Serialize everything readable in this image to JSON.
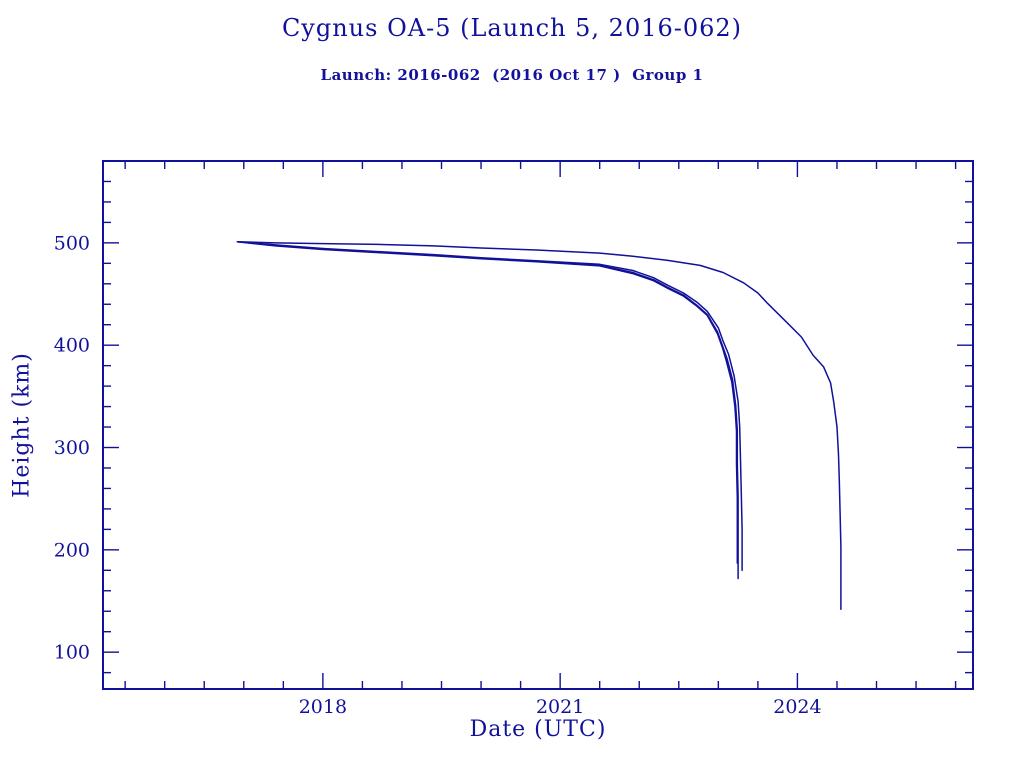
{
  "title": "Cygnus OA-5 (Launch 5, 2016-062)",
  "subtitle": "Launch: 2016-062  (2016 Oct 17 )  Group 1",
  "colors": {
    "ink": "#11119b",
    "background": "#ffffff"
  },
  "chart_data": {
    "type": "line",
    "title": "Cygnus OA-5 (Launch 5, 2016-062)",
    "subtitle": "Launch: 2016-062  (2016 Oct 17 )  Group 1",
    "xlabel": "Date (UTC)",
    "ylabel": "Height (km)",
    "xlim": [
      2015.22,
      2026.22
    ],
    "ylim": [
      64,
      580
    ],
    "x_major_ticks": [
      2018,
      2021,
      2024
    ],
    "x_minor_step": 0.5,
    "y_major_ticks": [
      100,
      200,
      300,
      400,
      500
    ],
    "y_minor_step": 20,
    "grid": false,
    "legend": "none",
    "line_color": "#11119b",
    "series": [
      {
        "name": "curve-1-long-lived-object",
        "points": [
          [
            2016.92,
            501
          ],
          [
            2017.4,
            500
          ],
          [
            2018.0,
            499.3
          ],
          [
            2018.7,
            498.5
          ],
          [
            2019.4,
            497
          ],
          [
            2020.0,
            495
          ],
          [
            2020.7,
            493
          ],
          [
            2021.5,
            490
          ],
          [
            2021.92,
            487
          ],
          [
            2022.35,
            483
          ],
          [
            2022.77,
            478
          ],
          [
            2023.06,
            471
          ],
          [
            2023.32,
            461
          ],
          [
            2023.5,
            451
          ],
          [
            2023.62,
            441
          ],
          [
            2023.87,
            422
          ],
          [
            2024.05,
            408
          ],
          [
            2024.2,
            390
          ],
          [
            2024.33,
            379
          ],
          [
            2024.42,
            363
          ],
          [
            2024.46,
            344
          ],
          [
            2024.5,
            320
          ],
          [
            2024.52,
            293
          ],
          [
            2024.53,
            268
          ],
          [
            2024.54,
            236
          ],
          [
            2024.55,
            203
          ],
          [
            2024.55,
            142
          ]
        ]
      },
      {
        "name": "curve-2",
        "points": [
          [
            2016.92,
            501
          ],
          [
            2017.4,
            497.5
          ],
          [
            2018.0,
            494
          ],
          [
            2018.7,
            491
          ],
          [
            2019.4,
            488
          ],
          [
            2020.0,
            485
          ],
          [
            2020.7,
            482
          ],
          [
            2021.5,
            478
          ],
          [
            2021.92,
            471
          ],
          [
            2022.18,
            464
          ],
          [
            2022.35,
            457
          ],
          [
            2022.56,
            449
          ],
          [
            2022.73,
            439
          ],
          [
            2022.86,
            430
          ],
          [
            2022.99,
            413
          ],
          [
            2023.05,
            400
          ],
          [
            2023.11,
            387
          ],
          [
            2023.18,
            366
          ],
          [
            2023.22,
            341
          ],
          [
            2023.24,
            317
          ],
          [
            2023.24,
            285
          ],
          [
            2023.25,
            252
          ],
          [
            2023.25,
            219
          ],
          [
            2023.25,
            172
          ]
        ]
      },
      {
        "name": "curve-3",
        "points": [
          [
            2016.92,
            501
          ],
          [
            2017.4,
            497
          ],
          [
            2018.0,
            493.5
          ],
          [
            2018.7,
            490.5
          ],
          [
            2019.4,
            487.5
          ],
          [
            2020.0,
            484.5
          ],
          [
            2020.7,
            481.5
          ],
          [
            2021.5,
            477.5
          ],
          [
            2021.92,
            470
          ],
          [
            2022.18,
            463
          ],
          [
            2022.35,
            456
          ],
          [
            2022.56,
            448
          ],
          [
            2022.73,
            438
          ],
          [
            2022.86,
            429
          ],
          [
            2022.99,
            411
          ],
          [
            2023.05,
            398
          ],
          [
            2023.1,
            385
          ],
          [
            2023.17,
            364
          ],
          [
            2023.21,
            340
          ],
          [
            2023.23,
            316
          ],
          [
            2023.23,
            284
          ],
          [
            2023.24,
            251
          ],
          [
            2023.24,
            187
          ]
        ]
      },
      {
        "name": "curve-4",
        "points": [
          [
            2016.92,
            501
          ],
          [
            2017.4,
            498
          ],
          [
            2018.0,
            494.5
          ],
          [
            2018.7,
            491.5
          ],
          [
            2019.4,
            488.5
          ],
          [
            2020.0,
            485.5
          ],
          [
            2020.7,
            482.5
          ],
          [
            2021.5,
            479
          ],
          [
            2021.92,
            473
          ],
          [
            2022.18,
            466
          ],
          [
            2022.35,
            459
          ],
          [
            2022.56,
            451
          ],
          [
            2022.73,
            442
          ],
          [
            2022.86,
            433
          ],
          [
            2023.0,
            417
          ],
          [
            2023.06,
            404
          ],
          [
            2023.13,
            391
          ],
          [
            2023.2,
            370
          ],
          [
            2023.25,
            345
          ],
          [
            2023.27,
            320
          ],
          [
            2023.28,
            288
          ],
          [
            2023.29,
            255
          ],
          [
            2023.3,
            220
          ],
          [
            2023.3,
            180
          ]
        ]
      }
    ]
  }
}
